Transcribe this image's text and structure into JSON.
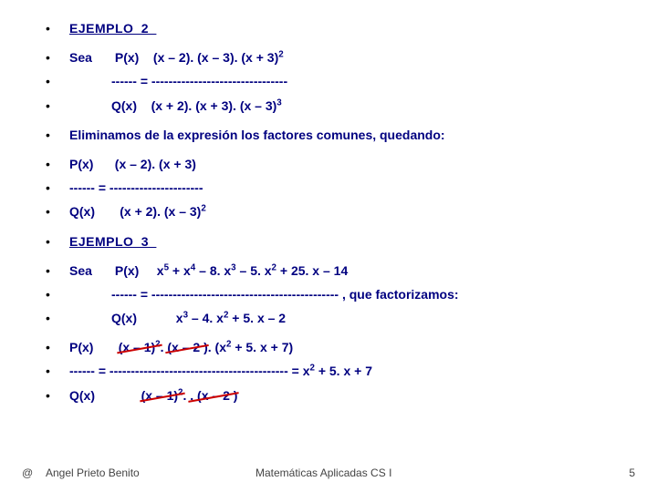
{
  "colors": {
    "text": "#000080",
    "bullet": "#000000",
    "strike": "#cc0000",
    "bg": "#ffffff",
    "footer": "#444444"
  },
  "font": {
    "family": "Arial",
    "size_pt": 14,
    "weight": "bold"
  },
  "ex2": {
    "title": "EJEMPLO_2",
    "sea": "Sea",
    "lhs_top": "P(x)",
    "rhs1_top": "(x – 2). (x – 3). (x + 3)",
    "sup1": "2",
    "mid": "------ = --------------------------------",
    "lhs_bot": "Q(x)",
    "rhs1_bot": "(x + 2). (x + 3). (x – 3)",
    "sup2": "3",
    "elim": "Eliminamos de la expresión los factores comunes, quedando:",
    "lhs2_top": "P(x)",
    "rhs2_top": "(x – 2). (x + 3)",
    "mid2": "------ = ----------------------",
    "lhs2_bot": "Q(x)",
    "rhs2_bot": "(x + 2). (x – 3)",
    "sup3": "2"
  },
  "ex3": {
    "title": "EJEMPLO_3",
    "sea": "Sea",
    "lhs_top": "P(x)",
    "rhs_top_a": "x",
    "e5": "5",
    "rhs_top_b": " + x",
    "e4": "4",
    "rhs_top_c": " – 8. x",
    "e3": "3",
    "rhs_top_d": " – 5. x",
    "e2": "2",
    "rhs_top_e": " + 25. x – 14",
    "mid": "------ = --------------------------------------------  ,  que factorizamos:",
    "lhs_bot": "Q(x)",
    "rhs_bot_a": "x",
    "rhs_bot_b": " – 4. x",
    "rhs_bot_c": " + 5. x – 2",
    "r2": {
      "lhs_top": "P(x)",
      "t1": "(x – 1)",
      "s1": "2",
      "t2": ". (x – 2 ). (x",
      "s2": "2",
      "t3": " + 5. x + 7)",
      "mid": "------ = ------------------------------------------  =  x",
      "ms": "2",
      "mtail": " + 5. x + 7",
      "lhs_bot": "Q(x)",
      "b1": "(x – 1)",
      "bs1": "2",
      "b2": ". (x – 2 )"
    }
  },
  "footer": {
    "at": "@",
    "author": "Angel Prieto Benito",
    "course": "Matemáticas Aplicadas CS I",
    "page": "5"
  }
}
